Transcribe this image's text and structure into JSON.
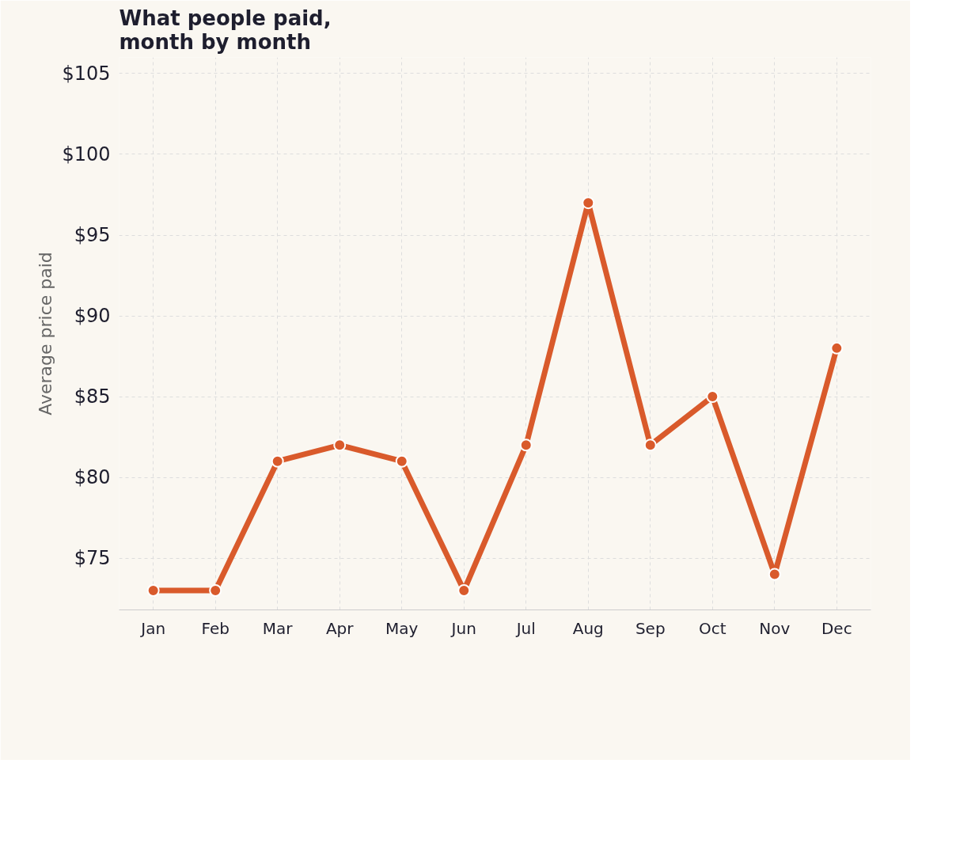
{
  "chart_data": {
    "type": "line",
    "title": "What people paid,\nmonth by month",
    "ylabel": "Average price paid",
    "categories": [
      "Jan",
      "Feb",
      "Mar",
      "Apr",
      "May",
      "Jun",
      "Jul",
      "Aug",
      "Sep",
      "Oct",
      "Nov",
      "Dec"
    ],
    "series": [
      {
        "color": "#d95a2b",
        "values": [
          73,
          73,
          81,
          82,
          81,
          73,
          82,
          97,
          82,
          85,
          74,
          88
        ]
      }
    ],
    "ylim": [
      71.8,
      106
    ],
    "yticks": [
      {
        "value": 75,
        "label": "$75"
      },
      {
        "value": 80,
        "label": "$80"
      },
      {
        "value": 85,
        "label": "$85"
      },
      {
        "value": 90,
        "label": "$90"
      },
      {
        "value": 95,
        "label": "$95"
      },
      {
        "value": 100,
        "label": "$100"
      },
      {
        "value": 105,
        "label": "$105"
      }
    ],
    "grid": true,
    "marker": "circle",
    "line_style": "solid"
  }
}
